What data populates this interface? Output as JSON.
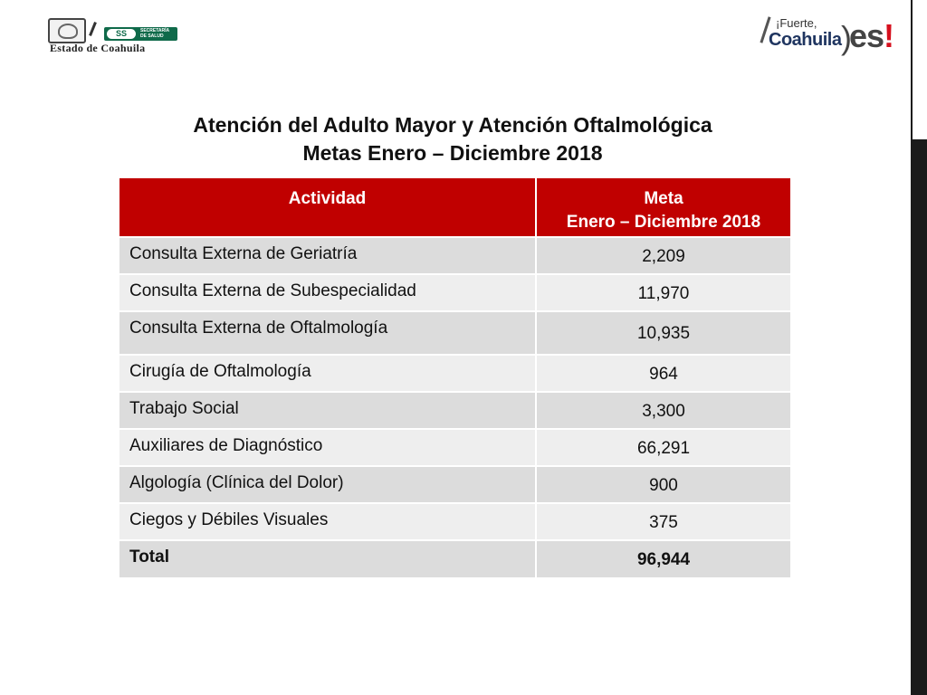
{
  "logos": {
    "left": {
      "ss_label": "SS",
      "ss_caption": "SECRETARÍA DE SALUD",
      "state_name": "Estado de Coahuila"
    },
    "right": {
      "line1": "¡Fuerte,",
      "line2": "Coahuila",
      "line3": "es",
      "bang": "!"
    }
  },
  "title": {
    "line1": "Atención del Adulto Mayor y Atención Oftalmológica",
    "line2": "Metas Enero – Diciembre 2018"
  },
  "table": {
    "header": {
      "col1": "Actividad",
      "col2_line1": "Meta",
      "col2_line2": "Enero – Diciembre 2018"
    },
    "rows": [
      {
        "actividad": "Consulta Externa de Geriatría",
        "meta": "2,209"
      },
      {
        "actividad": "Consulta Externa de Subespecialidad",
        "meta": "11,970"
      },
      {
        "actividad": "Consulta Externa de Oftalmología",
        "meta": "10,935"
      },
      {
        "actividad": "Cirugía de Oftalmología",
        "meta": "964"
      },
      {
        "actividad": "Trabajo Social",
        "meta": "3,300"
      },
      {
        "actividad": "Auxiliares de Diagnóstico",
        "meta": "66,291"
      },
      {
        "actividad": "Algología (Clínica del Dolor)",
        "meta": "900"
      },
      {
        "actividad": "Ciegos y Débiles Visuales",
        "meta": "375"
      }
    ],
    "total": {
      "label": "Total",
      "value": "96,944"
    }
  },
  "colors": {
    "header_bg": "#c00000",
    "row_dark": "#dcdcdc",
    "row_light": "#eeeeee"
  }
}
